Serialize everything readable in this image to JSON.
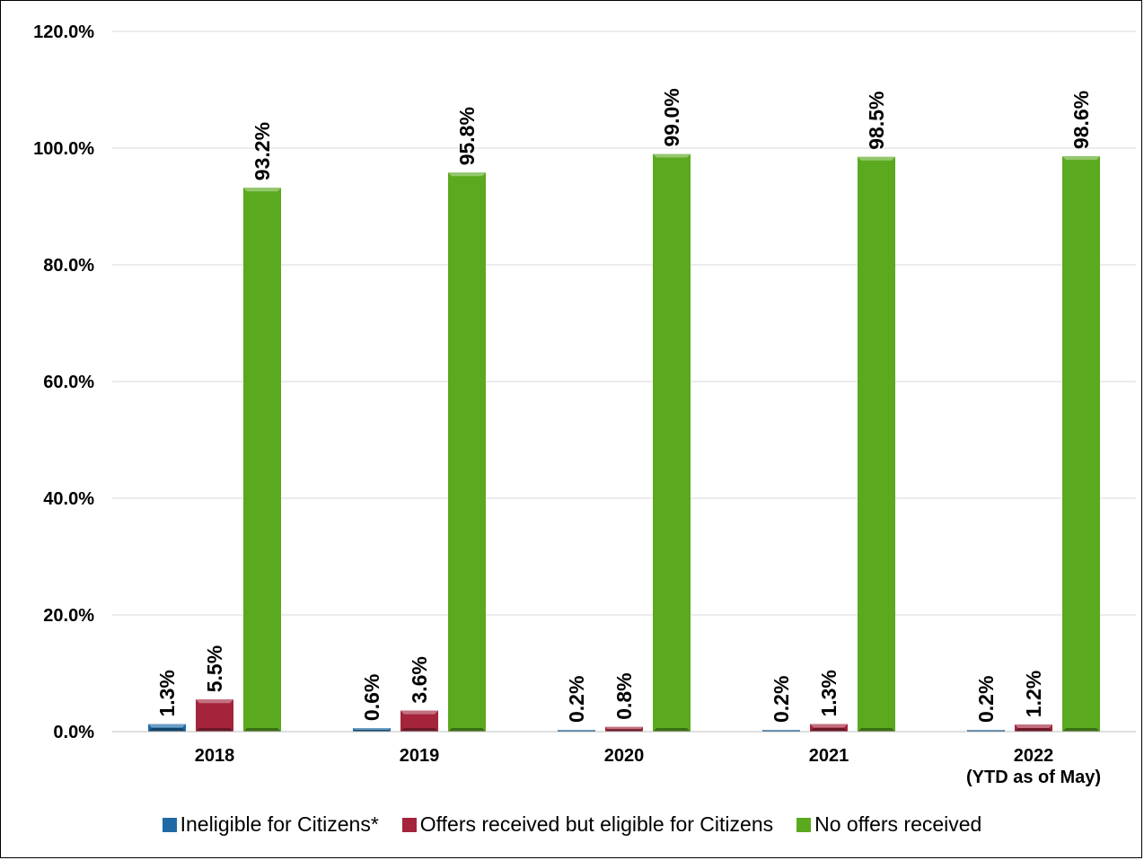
{
  "chart_data": {
    "type": "bar",
    "categories": [
      [
        "2018"
      ],
      [
        "2019"
      ],
      [
        "2020"
      ],
      [
        "2021"
      ],
      [
        "2022",
        "(YTD as of May)"
      ]
    ],
    "series": [
      {
        "name": "Ineligible for Citizens*",
        "color": "#1f6aa5",
        "values": [
          1.3,
          0.6,
          0.2,
          0.2,
          0.2
        ],
        "labels": [
          "1.3%",
          "0.6%",
          "0.2%",
          "0.2%",
          "0.2%"
        ]
      },
      {
        "name": "Offers received but eligible for Citizens",
        "color": "#a3243b",
        "values": [
          5.5,
          3.6,
          0.8,
          1.3,
          1.2
        ],
        "labels": [
          "5.5%",
          "3.6%",
          "0.8%",
          "1.3%",
          "1.2%"
        ]
      },
      {
        "name": "No offers received",
        "color": "#5aa91e",
        "values": [
          93.2,
          95.8,
          99.0,
          98.5,
          98.6
        ],
        "labels": [
          "93.2%",
          "95.8%",
          "99.0%",
          "98.5%",
          "98.6%"
        ]
      }
    ],
    "yticks": [
      "0.0%",
      "20.0%",
      "40.0%",
      "60.0%",
      "80.0%",
      "100.0%",
      "120.0%"
    ],
    "ylim": [
      0,
      120
    ],
    "grid": true,
    "legend": "bottom"
  }
}
